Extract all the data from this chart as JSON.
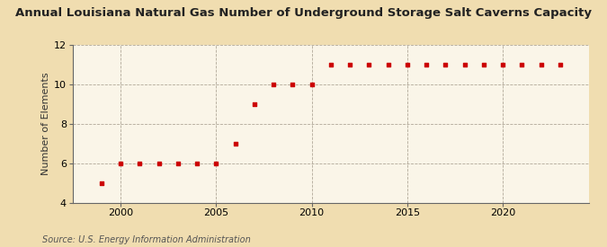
{
  "title": "Annual Louisiana Natural Gas Number of Underground Storage Salt Caverns Capacity",
  "ylabel": "Number of Elements",
  "source": "Source: U.S. Energy Information Administration",
  "bg_outer": "#f0ddb0",
  "bg_inner": "#faf5e8",
  "years": [
    1999,
    2000,
    2001,
    2002,
    2003,
    2004,
    2005,
    2006,
    2007,
    2008,
    2009,
    2010,
    2011,
    2012,
    2013,
    2014,
    2015,
    2016,
    2017,
    2018,
    2019,
    2020,
    2021,
    2022,
    2023
  ],
  "values": [
    5,
    6,
    6,
    6,
    6,
    6,
    6,
    7,
    9,
    10,
    10,
    10,
    11,
    11,
    11,
    11,
    11,
    11,
    11,
    11,
    11,
    11,
    11,
    11,
    11
  ],
  "marker_color": "#cc0000",
  "marker": "s",
  "marker_size": 3.5,
  "ylim": [
    4,
    12
  ],
  "yticks": [
    4,
    6,
    8,
    10,
    12
  ],
  "xlim": [
    1997.5,
    2024.5
  ],
  "xticks": [
    2000,
    2005,
    2010,
    2015,
    2020
  ],
  "grid_color": "#b0a898",
  "title_fontsize": 9.5,
  "ylabel_fontsize": 8,
  "tick_fontsize": 8,
  "source_fontsize": 7
}
